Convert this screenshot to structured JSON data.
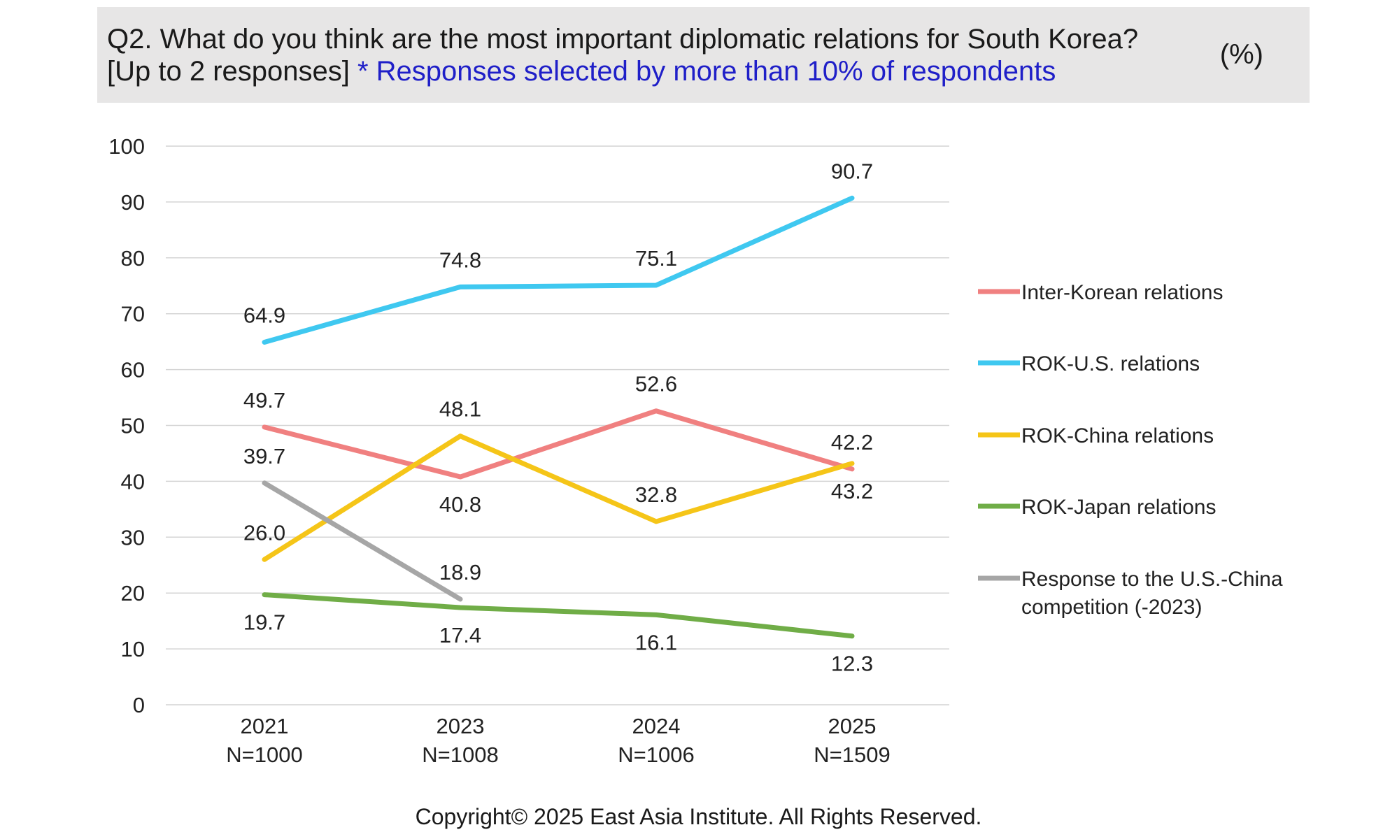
{
  "header": {
    "question": "Q2. What do you think are the most important diplomatic relations for South Korea?",
    "instruction": "[Up to 2 responses]",
    "note": "* Responses selected by more than 10% of respondents",
    "unit": "(%)"
  },
  "chart_data": {
    "type": "line",
    "categories": [
      {
        "year": "2021",
        "n": "N=1000"
      },
      {
        "year": "2023",
        "n": "N=1008"
      },
      {
        "year": "2024",
        "n": "N=1006"
      },
      {
        "year": "2025",
        "n": "N=1509"
      }
    ],
    "ylim": [
      0,
      100
    ],
    "yticks": [
      0,
      10,
      20,
      30,
      40,
      50,
      60,
      70,
      80,
      90,
      100
    ],
    "grid": true,
    "legend": "right",
    "series": [
      {
        "name": "Inter-Korean relations",
        "color": "#f08080",
        "values": [
          49.7,
          40.8,
          52.6,
          42.2
        ],
        "labels": [
          "49.7",
          "40.8",
          "52.6",
          "42.2"
        ],
        "label_pos": [
          "above",
          "below",
          "above",
          "above"
        ]
      },
      {
        "name": "ROK-U.S. relations",
        "color": "#3fc8f0",
        "values": [
          64.9,
          74.8,
          75.1,
          90.7
        ],
        "labels": [
          "64.9",
          "74.8",
          "75.1",
          "90.7"
        ],
        "label_pos": [
          "above",
          "above",
          "above",
          "above"
        ]
      },
      {
        "name": "ROK-China relations",
        "color": "#f5c518",
        "values": [
          26.0,
          48.1,
          32.8,
          43.2
        ],
        "labels": [
          "26.0",
          "48.1",
          "32.8",
          "43.2"
        ],
        "label_pos": [
          "above",
          "above",
          "above",
          "below"
        ]
      },
      {
        "name": "ROK-Japan relations",
        "color": "#70ad47",
        "values": [
          19.7,
          17.4,
          16.1,
          12.3
        ],
        "labels": [
          "19.7",
          "17.4",
          "16.1",
          "12.3"
        ],
        "label_pos": [
          "below",
          "below",
          "below",
          "below"
        ]
      },
      {
        "name": "Response to the U.S.-China competition (-2023)",
        "color": "#a6a6a6",
        "legend_lines": [
          "Response to the U.S.-China",
          "competition (-2023)"
        ],
        "values": [
          39.7,
          18.9,
          null,
          null
        ],
        "labels": [
          "39.7",
          "18.9",
          null,
          null
        ],
        "label_pos": [
          "above",
          "above",
          null,
          null
        ]
      }
    ]
  },
  "footer": {
    "copyright": "Copyright© 2025 East Asia Institute. All Rights Reserved."
  }
}
